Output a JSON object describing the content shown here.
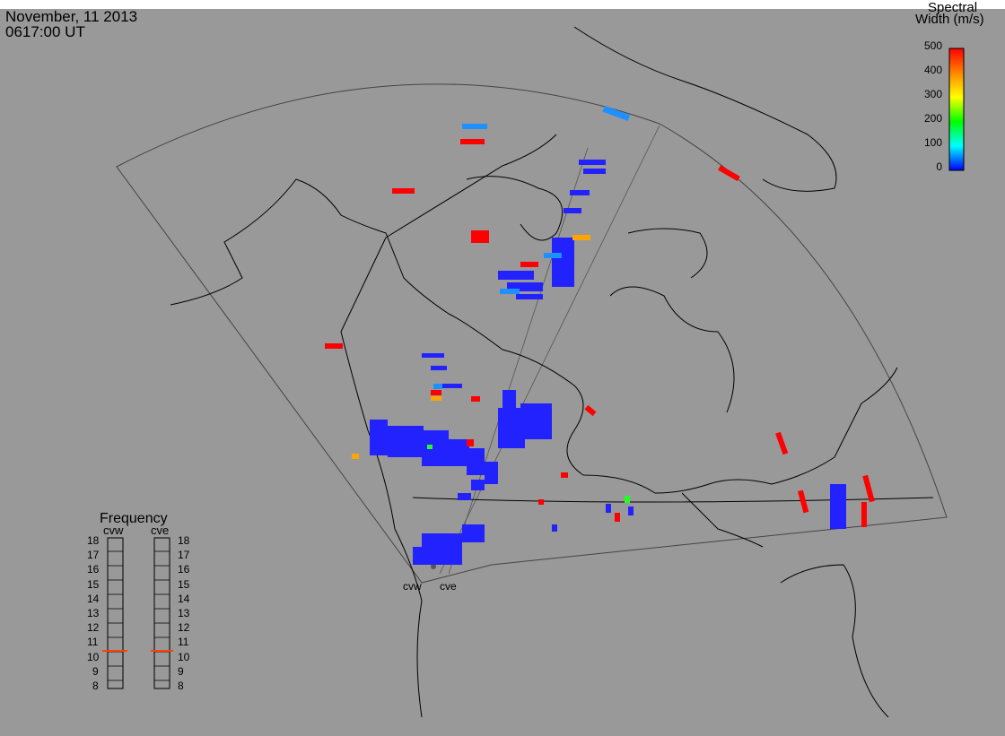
{
  "header": {
    "date": "November, 11 2013",
    "time": "0617:00 UT"
  },
  "colorbar": {
    "title_line1": "Spectral",
    "title_line2": "Width (m/s)",
    "ticks": [
      "500",
      "400",
      "300",
      "200",
      "100",
      "0"
    ],
    "colors": [
      "#ff0000",
      "#ffa500",
      "#ffff00",
      "#00ff00",
      "#00ffff",
      "#0000ff"
    ]
  },
  "frequency": {
    "title": "Frequency",
    "radars": [
      "cvw",
      "cve"
    ],
    "scale": [
      "18",
      "17",
      "16",
      "15",
      "14",
      "13",
      "12",
      "11",
      "10",
      "9",
      "8"
    ],
    "values_mhz": [
      10.8,
      10.8
    ],
    "marker_color": "#ff4000"
  },
  "sites": [
    "cvw",
    "cve"
  ],
  "colors": {
    "background": "#999999",
    "land_outline": "#000000",
    "fov_outline": "#444444",
    "echo_low": "#2222ff"
  }
}
